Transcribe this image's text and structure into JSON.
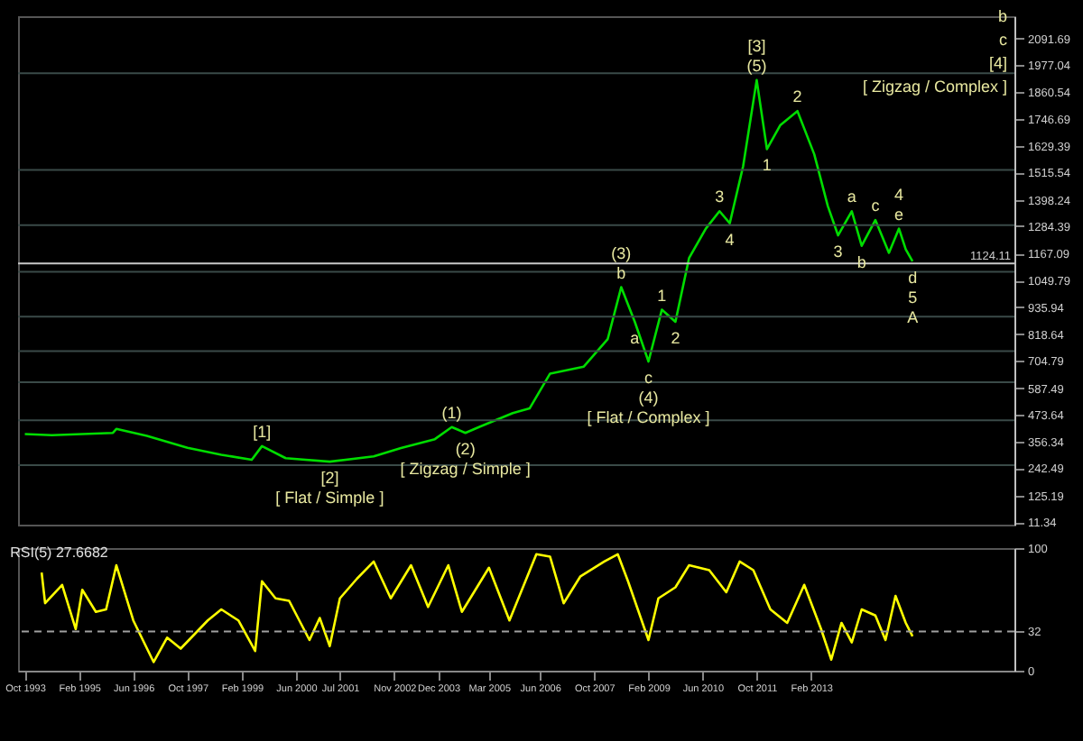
{
  "chart_data": [
    {
      "type": "line",
      "tick_labels": "y",
      "xlim": [
        "1993-08",
        "2018-02"
      ],
      "ylim": [
        0,
        2188
      ],
      "yticks": [
        11.34,
        125.19,
        242.49,
        356.34,
        473.64,
        587.49,
        704.79,
        818.64,
        935.94,
        1049.79,
        1167.09,
        1284.39,
        1398.24,
        1515.54,
        1629.39,
        1746.69,
        1860.54,
        1977.04,
        2091.69
      ],
      "series": [
        {
          "color": "#00dd00",
          "x": [
            "1993-10",
            "1994-06",
            "1995-03",
            "1995-12",
            "1996-01",
            "1996-10",
            "1997-10",
            "1998-08",
            "1999-05",
            "1999-08",
            "2000-03",
            "2001-04",
            "2002-05",
            "2003-01",
            "2003-11",
            "2004-04",
            "2004-08",
            "2004-12",
            "2005-10",
            "2006-03",
            "2006-09",
            "2007-07",
            "2008-02",
            "2008-06",
            "2008-10",
            "2009-02",
            "2009-06",
            "2009-10",
            "2010-02",
            "2010-07",
            "2010-11",
            "2011-02",
            "2011-06",
            "2011-10",
            "2012-01",
            "2012-05",
            "2012-10",
            "2013-03",
            "2013-07",
            "2013-10",
            "2014-02",
            "2014-05",
            "2014-09",
            "2015-01",
            "2015-04",
            "2015-06",
            "2015-08"
          ],
          "values": [
            390,
            385,
            390,
            395,
            412,
            382,
            331,
            301,
            279,
            338,
            286,
            271,
            294,
            330,
            368,
            420,
            395,
            420,
            480,
            500,
            650,
            680,
            799,
            1022,
            873,
            702,
            925,
            873,
            1148,
            1274,
            1349,
            1297,
            1542,
            1913,
            1616,
            1720,
            1780,
            1594,
            1371,
            1245,
            1349,
            1200,
            1311,
            1170,
            1274,
            1185,
            1133
          ]
        }
      ],
      "ref_lines": [
        {
          "axis": "y",
          "value": 1124.11,
          "label": "1124.11",
          "color": "#c8c8c8"
        },
        {
          "axis": "y",
          "value": 1943,
          "color": "#3a4a48"
        },
        {
          "axis": "y",
          "value": 1527,
          "color": "#3a4a48"
        },
        {
          "axis": "y",
          "value": 1289,
          "color": "#3a4a48"
        },
        {
          "axis": "y",
          "value": 1088,
          "color": "#3a4a48"
        },
        {
          "axis": "y",
          "value": 895,
          "color": "#3a4a48"
        },
        {
          "axis": "y",
          "value": 747,
          "color": "#3a4a48"
        },
        {
          "axis": "y",
          "value": 613,
          "color": "#3a4a48"
        },
        {
          "axis": "y",
          "value": 449,
          "color": "#3a4a48"
        },
        {
          "axis": "y",
          "value": 256,
          "color": "#3a4a48"
        }
      ],
      "annotations": [
        {
          "text": "(5)",
          "x": "2011-10",
          "y": 1913
        },
        {
          "text": "[3]",
          "x": "2011-10",
          "y": 1913
        },
        {
          "text": "2",
          "x": "2012-10",
          "y": 1780
        },
        {
          "text": "1",
          "x": "2012-01",
          "y": 1616
        },
        {
          "text": "a",
          "x": "2014-02",
          "y": 1349
        },
        {
          "text": "c",
          "x": "2014-09",
          "y": 1311
        },
        {
          "text": "e",
          "x": "2015-04",
          "y": 1274
        },
        {
          "text": "4",
          "x": "2015-04",
          "y": 1274
        },
        {
          "text": "3",
          "x": "2013-10",
          "y": 1245
        },
        {
          "text": "b",
          "x": "2014-05",
          "y": 1200
        },
        {
          "text": "d",
          "x": "2015-08",
          "y": 1133
        },
        {
          "text": "5",
          "x": "2015-08",
          "y": 1133
        },
        {
          "text": "A",
          "x": "2015-08",
          "y": 1133
        },
        "b",
        "c",
        "[4]",
        "[ Zigzag / Complex ]",
        {
          "text": "b",
          "x": "2008-06",
          "y": 1022
        },
        {
          "text": "(3)",
          "x": "2008-06",
          "y": 1022
        },
        {
          "text": "1",
          "x": "2009-06",
          "y": 925
        },
        {
          "text": "3",
          "x": "2010-11",
          "y": 1349
        },
        {
          "text": "4",
          "x": "2011-02",
          "y": 1297
        },
        {
          "text": "2",
          "x": "2009-10",
          "y": 873
        },
        {
          "text": "a",
          "x": "2008-10",
          "y": 873
        },
        {
          "text": "c",
          "x": "2009-02",
          "y": 702
        },
        {
          "text": "(4)",
          "x": "2009-02",
          "y": 702
        },
        {
          "text": "[ Flat / Complex ]",
          "x": "2009-02",
          "y": 702
        },
        {
          "text": "(1)",
          "x": "2004-04",
          "y": 420
        },
        {
          "text": "(2)",
          "x": "2004-08",
          "y": 395
        },
        {
          "text": "[ Zigzag / Simple ]",
          "x": "2004-08",
          "y": 395
        },
        {
          "text": "[1]",
          "x": "1999-08",
          "y": 338
        },
        {
          "text": "[2]",
          "x": "2001-04",
          "y": 271
        },
        {
          "text": "[ Flat / Simple ]",
          "x": "2001-04",
          "y": 271
        }
      ]
    },
    {
      "type": "line",
      "title": "RSI(5) 27.6682",
      "xlim": [
        "1993-08",
        "2018-02"
      ],
      "ylim": [
        0,
        100
      ],
      "yticks": [
        0,
        32,
        100
      ],
      "xticks": [
        {
          "value": "1993-10",
          "label": "Oct 1993"
        },
        {
          "value": "1995-02",
          "label": "Feb 1995"
        },
        {
          "value": "1996-06",
          "label": "Jun 1996"
        },
        {
          "value": "1997-10",
          "label": "Oct 1997"
        },
        {
          "value": "1999-02",
          "label": "Feb 1999"
        },
        {
          "value": "2000-06",
          "label": "Jun 2000"
        },
        {
          "value": "2001-07",
          "label": "Jul 2001"
        },
        {
          "value": "2002-11",
          "label": "Nov 2002"
        },
        {
          "value": "2003-12",
          "label": "Dec 2003"
        },
        {
          "value": "2005-03",
          "label": "Mar 2005"
        },
        {
          "value": "2006-06",
          "label": "Jun 2006"
        },
        {
          "value": "2007-10",
          "label": "Oct 2007"
        },
        {
          "value": "2009-02",
          "label": "Feb 2009"
        },
        {
          "value": "2010-06",
          "label": "Jun 2010"
        },
        {
          "value": "2011-10",
          "label": "Oct 2011"
        },
        {
          "value": "2013-02",
          "label": "Feb 2013"
        }
      ],
      "series": [
        {
          "color": "#ffff00",
          "x": [
            "1994-03",
            "1994-04",
            "1994-09",
            "1995-01",
            "1995-03",
            "1995-07",
            "1995-10",
            "1996-01",
            "1996-06",
            "1996-12",
            "1997-04",
            "1997-08",
            "1998-04",
            "1998-08",
            "1999-01",
            "1999-06",
            "1999-08",
            "1999-12",
            "2000-04",
            "2000-10",
            "2001-01",
            "2001-04",
            "2001-07",
            "2001-12",
            "2002-05",
            "2002-10",
            "2003-04",
            "2003-09",
            "2004-03",
            "2004-07",
            "2005-03",
            "2005-09",
            "2006-05",
            "2006-09",
            "2007-01",
            "2007-06",
            "2008-01",
            "2008-05",
            "2008-08",
            "2009-02",
            "2009-05",
            "2009-10",
            "2010-02",
            "2010-08",
            "2011-01",
            "2011-05",
            "2011-09",
            "2012-02",
            "2012-07",
            "2012-12",
            "2013-05",
            "2013-08",
            "2013-11",
            "2014-02",
            "2014-05",
            "2014-09",
            "2014-12",
            "2015-03",
            "2015-06",
            "2015-08"
          ],
          "values": [
            80,
            55,
            70,
            34,
            66,
            48,
            50,
            86,
            41,
            7,
            27,
            18,
            41,
            50,
            41,
            16,
            73,
            59,
            57,
            25,
            43,
            20,
            59,
            75,
            89,
            59,
            86,
            52,
            86,
            48,
            84,
            41,
            95,
            93,
            55,
            77,
            89,
            95,
            73,
            25,
            59,
            68,
            86,
            82,
            64,
            89,
            82,
            50,
            39,
            70,
            34,
            9,
            39,
            23,
            50,
            45,
            25,
            61,
            39,
            28
          ]
        }
      ],
      "ref_lines": [
        {
          "axis": "y",
          "value": 32,
          "color": "#a0a0a0",
          "line_style": "dashed"
        }
      ]
    }
  ]
}
